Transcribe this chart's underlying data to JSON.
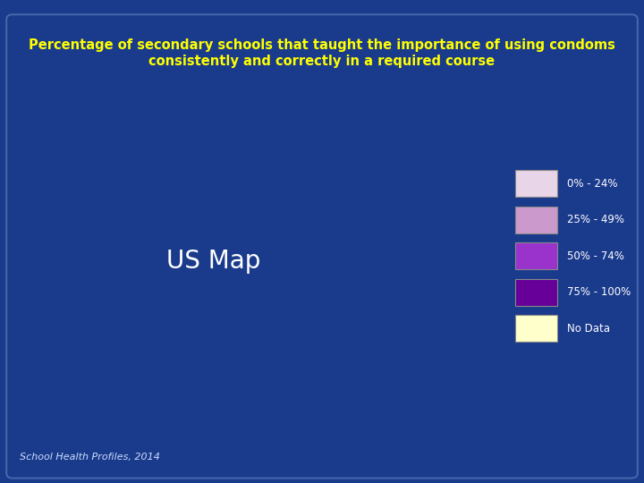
{
  "title_line1": "Percentage of secondary schools that taught the importance of using condoms",
  "title_line2": "consistently and correctly in a required course",
  "title_color": "#FFFF00",
  "background_color": "#1a3a8c",
  "inner_bg_color": "#1a3a8c",
  "legend_labels": [
    "0% - 24%",
    "25% - 49%",
    "50% - 74%",
    "75% - 100%",
    "No Data"
  ],
  "legend_colors": [
    "#e8d5e8",
    "#cc99cc",
    "#9933cc",
    "#660099",
    "#ffffcc"
  ],
  "source_text": "School Health Profiles, 2014",
  "source_color": "#ccddff",
  "state_colors": {
    "Alabama": "#9933cc",
    "Alaska": "#9933cc",
    "Arizona": "#cc99cc",
    "Arkansas": "#9933cc",
    "California": "#9933cc",
    "Colorado": "#cc99cc",
    "Connecticut": "#9933cc",
    "Delaware": "#9933cc",
    "Florida": "#9933cc",
    "Georgia": "#9933cc",
    "Hawaii": "#9933cc",
    "Idaho": "#cc99cc",
    "Illinois": "#9933cc",
    "Indiana": "#9933cc",
    "Iowa": "#cc99cc",
    "Kansas": "#ffffcc",
    "Kentucky": "#9933cc",
    "Louisiana": "#9933cc",
    "Maine": "#9933cc",
    "Maryland": "#9933cc",
    "Massachusetts": "#9933cc",
    "Michigan": "#9933cc",
    "Minnesota": "#9933cc",
    "Mississippi": "#9933cc",
    "Missouri": "#9933cc",
    "Montana": "#cc99cc",
    "Nebraska": "#cc99cc",
    "Nevada": "#cc99cc",
    "New Hampshire": "#9933cc",
    "New Jersey": "#9933cc",
    "New Mexico": "#9933cc",
    "New York": "#660099",
    "North Carolina": "#9933cc",
    "North Dakota": "#cc99cc",
    "Ohio": "#9933cc",
    "Oklahoma": "#9933cc",
    "Oregon": "#9933cc",
    "Pennsylvania": "#9933cc",
    "Rhode Island": "#9933cc",
    "South Carolina": "#9933cc",
    "South Dakota": "#cc99cc",
    "Tennessee": "#9933cc",
    "Texas": "#ffffcc",
    "Utah": "#ffffcc",
    "Vermont": "#9933cc",
    "Virginia": "#9933cc",
    "Washington": "#9933cc",
    "West Virginia": "#9933cc",
    "Wisconsin": "#cc99cc",
    "Wyoming": "#cc99cc"
  }
}
